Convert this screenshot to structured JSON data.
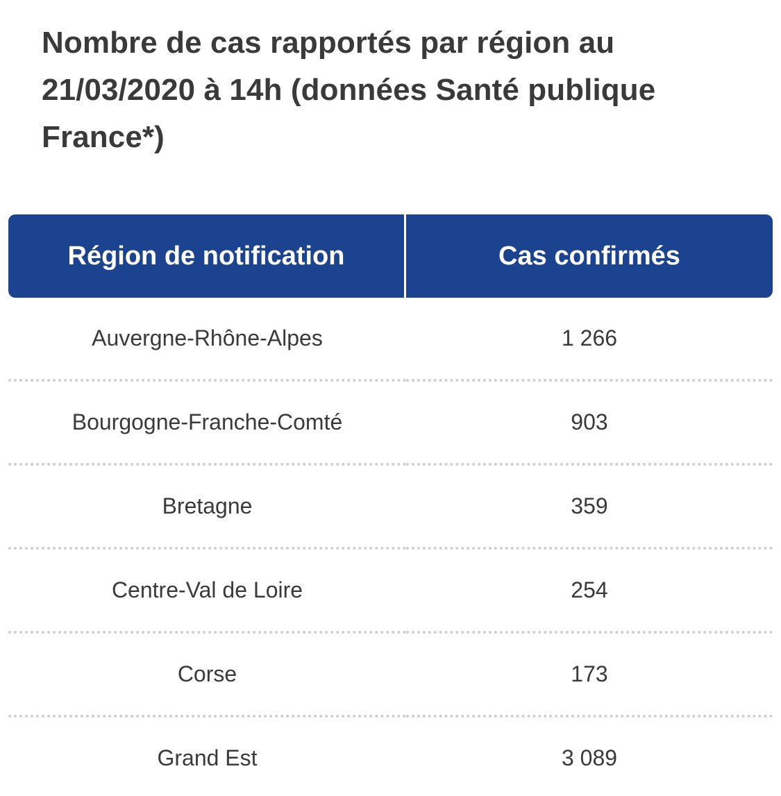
{
  "title": "Nombre de cas rapportés par région au 21/03/2020 à 14h (données Santé publique France*)",
  "table": {
    "headers": [
      "Région de notification",
      "Cas confirmés"
    ],
    "rows": [
      {
        "region": "Auvergne-Rhône-Alpes",
        "cases": "1 266"
      },
      {
        "region": "Bourgogne-Franche-Comté",
        "cases": "903"
      },
      {
        "region": "Bretagne",
        "cases": "359"
      },
      {
        "region": "Centre-Val de Loire",
        "cases": "254"
      },
      {
        "region": "Corse",
        "cases": "173"
      },
      {
        "region": "Grand Est",
        "cases": "3 089"
      }
    ]
  },
  "colors": {
    "header_background": "#1c4390",
    "header_text": "#ffffff",
    "body_text": "#3a3a3a",
    "row_separator": "#cfcfcf"
  }
}
